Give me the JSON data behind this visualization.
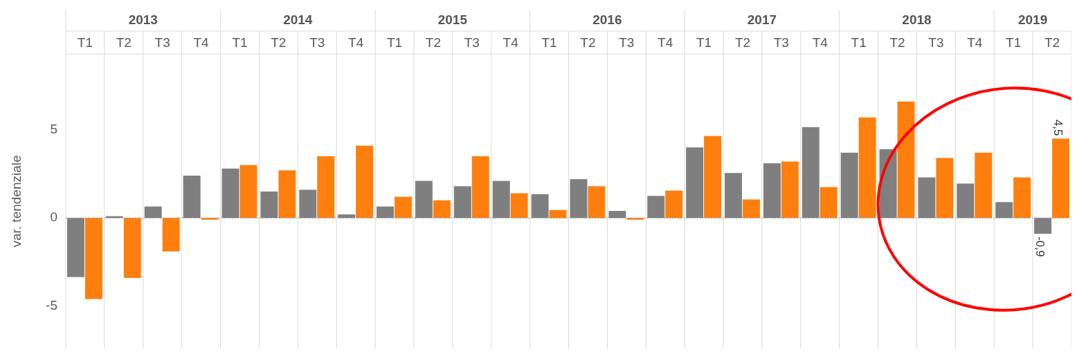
{
  "chart_data": {
    "type": "bar",
    "ylabel": "var. tendenziale",
    "categories": [
      "T1",
      "T2",
      "T3",
      "T4",
      "T1",
      "T2",
      "T3",
      "T4",
      "T1",
      "T2",
      "T3",
      "T4",
      "T1",
      "T2",
      "T3",
      "T4",
      "T1",
      "T2",
      "T3",
      "T4",
      "T1",
      "T2",
      "T3",
      "T4",
      "T1",
      "T2"
    ],
    "annotations": [
      "2013",
      "2014",
      "2015",
      "2016",
      "2017",
      "2018",
      "2019"
    ],
    "series": [
      {
        "color": "#7f7f7f",
        "values": [
          -3.35,
          0.1,
          0.65,
          2.4,
          2.8,
          1.5,
          1.6,
          0.2,
          0.65,
          2.1,
          1.8,
          2.1,
          1.35,
          2.2,
          0.4,
          1.25,
          4.0,
          2.55,
          3.1,
          5.15,
          3.7,
          3.9,
          2.3,
          1.95,
          0.9,
          -0.9
        ],
        "value_labels": [
          null,
          null,
          null,
          null,
          null,
          null,
          null,
          null,
          null,
          null,
          null,
          null,
          null,
          null,
          null,
          null,
          null,
          null,
          null,
          null,
          null,
          null,
          null,
          null,
          null,
          "-0,9"
        ]
      },
      {
        "color": "#ff7f0e",
        "values": [
          -4.6,
          -3.4,
          -1.9,
          -0.1,
          3.0,
          2.7,
          3.5,
          4.1,
          1.2,
          1.0,
          3.5,
          1.4,
          0.45,
          1.8,
          -0.1,
          1.55,
          4.65,
          1.05,
          3.2,
          1.75,
          5.7,
          6.6,
          3.4,
          3.7,
          2.3,
          4.5
        ],
        "value_labels": [
          null,
          null,
          null,
          null,
          null,
          null,
          null,
          null,
          null,
          null,
          null,
          null,
          null,
          null,
          null,
          null,
          null,
          null,
          null,
          null,
          null,
          null,
          null,
          null,
          null,
          "4,5"
        ]
      }
    ],
    "ylim": [
      -7.4,
      9.3
    ],
    "yticks": [
      {
        "value": 5,
        "label": "5"
      },
      {
        "value": 0,
        "label": "0"
      },
      {
        "value": -5,
        "label": "-5"
      }
    ],
    "ref_lines": [
      {
        "axis": "y",
        "value": 0,
        "color": "#888888",
        "line_style": "dotted"
      }
    ],
    "grid": "x"
  }
}
